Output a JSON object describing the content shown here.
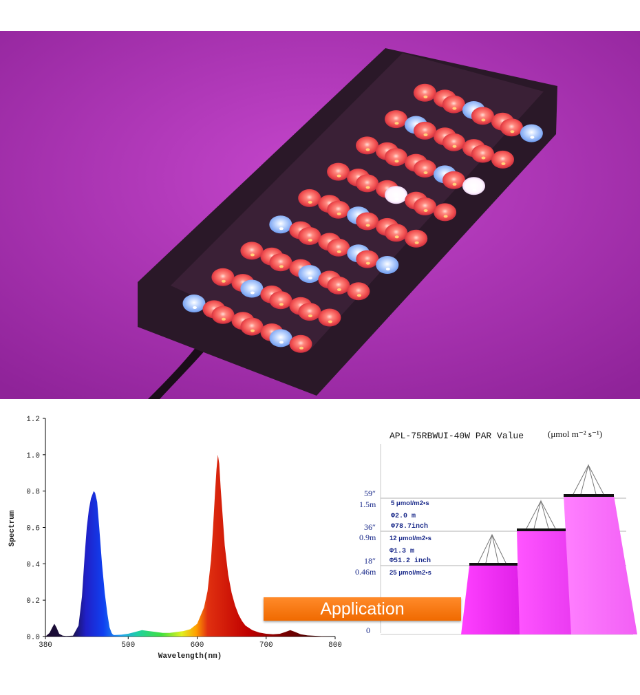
{
  "colors": {
    "background_purple": "#b02fb8",
    "led_red": "#f25a55",
    "led_blue": "#8ab8ff",
    "led_white": "#ffffff",
    "panel": "#2a1828",
    "button_orange": "#f47a1a",
    "par_blue_text": "#1a2a8a",
    "magenta": "#ee2aee"
  },
  "chart_data": [
    {
      "type": "area",
      "ylabel": "Spectrum",
      "xlabel": "Wavelength(nm)",
      "xlim": [
        380,
        800
      ],
      "ylim": [
        0,
        1.2
      ],
      "x_ticks": [
        "380",
        "500",
        "600",
        "700",
        "800"
      ],
      "y_ticks": [
        "0.0",
        "0.2",
        "0.4",
        "0.6",
        "0.8",
        "1.0",
        "1.2"
      ],
      "grid": false,
      "legend": "none",
      "peaks": [
        {
          "x": 392,
          "y": 0.07
        },
        {
          "x": 450,
          "y": 0.8
        },
        {
          "x": 630,
          "y": 1.0
        },
        {
          "x": 735,
          "y": 0.035
        }
      ],
      "x": [
        380,
        386,
        390,
        393,
        396,
        400,
        405,
        410,
        420,
        428,
        433,
        437,
        440,
        443,
        446,
        449,
        450,
        452,
        455,
        458,
        462,
        466,
        470,
        473,
        476,
        478,
        480,
        490,
        500,
        510,
        520,
        530,
        540,
        550,
        560,
        570,
        580,
        590,
        600,
        610,
        615,
        620,
        623,
        626,
        628,
        630,
        632,
        634,
        637,
        640,
        645,
        650,
        655,
        660,
        665,
        670,
        680,
        690,
        700,
        710,
        720,
        728,
        735,
        742,
        750,
        760,
        780,
        800
      ],
      "values": [
        0,
        0.02,
        0.05,
        0.07,
        0.05,
        0.015,
        0.005,
        0.003,
        0.005,
        0.06,
        0.22,
        0.45,
        0.6,
        0.7,
        0.76,
        0.79,
        0.8,
        0.79,
        0.74,
        0.6,
        0.4,
        0.24,
        0.12,
        0.05,
        0.02,
        0.01,
        0.008,
        0.01,
        0.015,
        0.025,
        0.035,
        0.03,
        0.025,
        0.02,
        0.02,
        0.025,
        0.03,
        0.04,
        0.07,
        0.16,
        0.25,
        0.42,
        0.6,
        0.8,
        0.92,
        1.0,
        0.95,
        0.82,
        0.66,
        0.5,
        0.34,
        0.24,
        0.17,
        0.12,
        0.085,
        0.06,
        0.035,
        0.022,
        0.015,
        0.012,
        0.015,
        0.025,
        0.035,
        0.025,
        0.012,
        0.006,
        0.002,
        0
      ]
    },
    {
      "type": "diagram",
      "title": "APL-75RBWUI-40W PAR Value",
      "unit": "(μmol m⁻² s⁻¹)",
      "heights": [
        {
          "in": "59″",
          "m": "1.5m",
          "par": "5 μmol/m2•s",
          "diam_m": "Φ2.0 m",
          "diam_in": "Φ78.7inch"
        },
        {
          "in": "36″",
          "m": "0.9m",
          "par": "12 μmol/m2•s",
          "diam_m": "Φ1.3 m",
          "diam_in": "Φ51.2 inch"
        },
        {
          "in": "18″",
          "m": "0.46m",
          "par": "25 μmol/m2•s"
        }
      ],
      "baseline": "0"
    }
  ],
  "application_button": {
    "label": "Application"
  }
}
